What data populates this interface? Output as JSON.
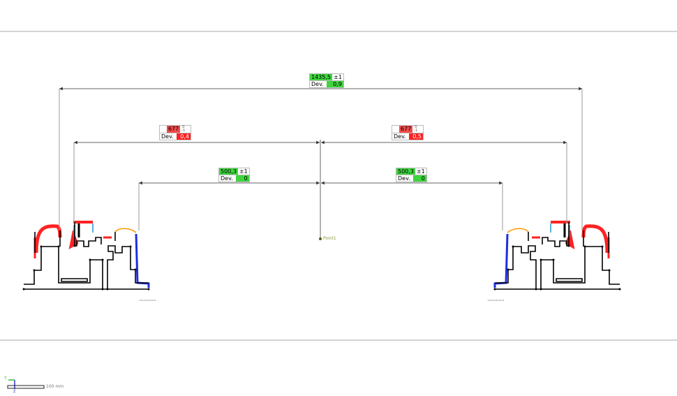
{
  "dimensions": [
    {
      "id": "overall",
      "value": "1435,5",
      "tolerance": "±1",
      "dev_label": "Dev.",
      "deviation": "0,9",
      "status_color": "#3ed43e"
    },
    {
      "id": "left-677",
      "value": "677",
      "tol_upper": "0",
      "tol_lower": "-1",
      "dev_label": "Dev.",
      "deviation": "0,4",
      "status_color": "#f04a4a"
    },
    {
      "id": "right-677",
      "value": "677",
      "tol_upper": "0",
      "tol_lower": "-1",
      "dev_label": "Dev.",
      "deviation": "0,5",
      "status_color": "#f04a4a"
    },
    {
      "id": "left-500",
      "value": "500,3",
      "tolerance": "±1",
      "dev_label": "Dev.",
      "deviation": "0",
      "status_color": "#3ed43e"
    },
    {
      "id": "right-500",
      "value": "500,3",
      "tolerance": "±1",
      "dev_label": "Dev.",
      "deviation": "0",
      "status_color": "#3ed43e"
    }
  ],
  "point_label": "Point1",
  "scale_bar": {
    "label": "100 mm",
    "axis_y": "Y",
    "axis_z": "Z"
  },
  "colors": {
    "deviation_high": "#ff2020",
    "deviation_low": "#1e2ee0",
    "nominal": "#000000"
  }
}
